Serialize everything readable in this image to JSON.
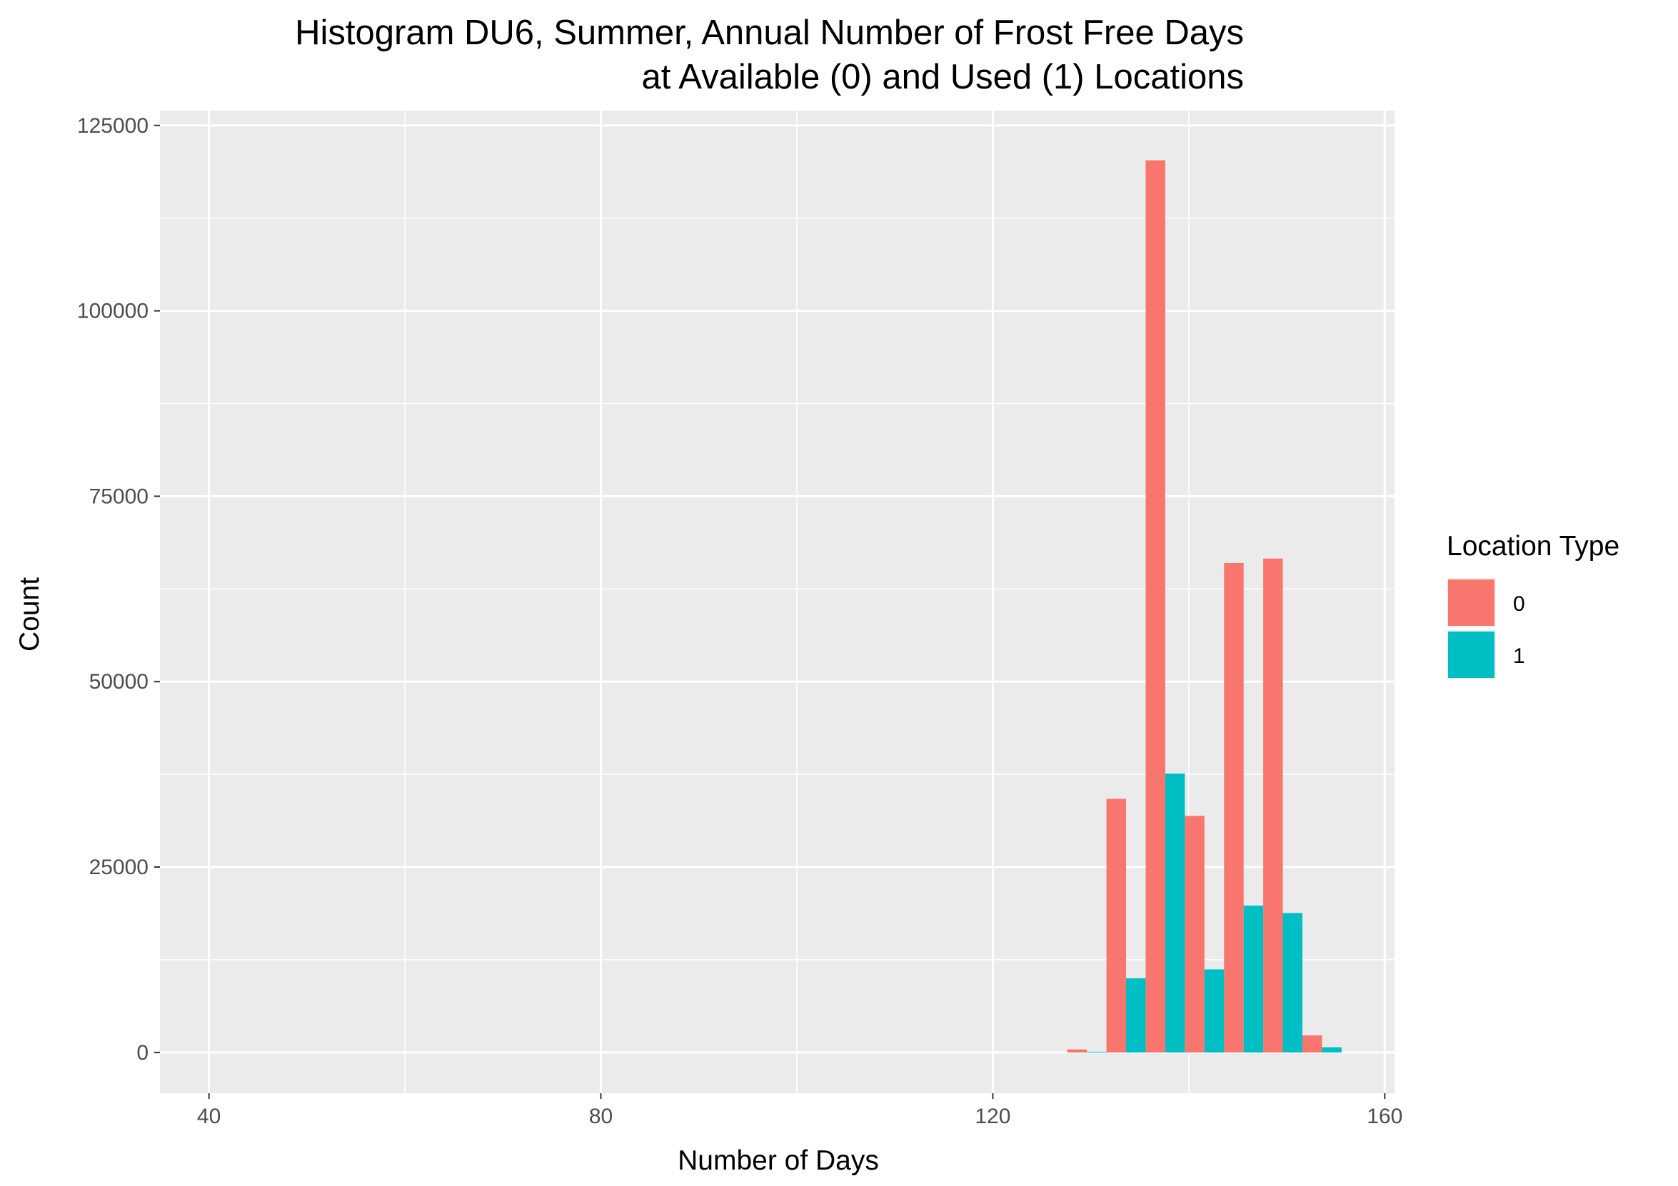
{
  "chart_data": {
    "type": "bar",
    "title_lines": [
      "Histogram DU6, Summer, Annual Number of Frost Free Days",
      "at Available (0) and Used (1) Locations"
    ],
    "xlabel": "Number of Days",
    "ylabel": "Count",
    "xlim": [
      35,
      161
    ],
    "ylim": [
      -5500,
      127000
    ],
    "x_ticks": [
      40,
      80,
      120,
      160
    ],
    "y_ticks": [
      0,
      25000,
      50000,
      75000,
      100000,
      125000
    ],
    "grid": true,
    "bin_width": 4,
    "bar_position": "dodge",
    "bins": [
      129.6,
      133.6,
      137.6,
      141.6,
      145.6,
      149.6,
      153.6
    ],
    "series": [
      {
        "name": "0",
        "color": "#F8766D",
        "values": [
          400,
          34200,
          120300,
          31900,
          66000,
          66600,
          2300
        ]
      },
      {
        "name": "1",
        "color": "#00BFC4",
        "values": [
          100,
          10000,
          37600,
          11200,
          19800,
          18800,
          700
        ]
      }
    ],
    "legend": {
      "title": "Location Type",
      "position": "right"
    },
    "panel_background": "#EBEBEB",
    "grid_color": "#FFFFFF"
  }
}
